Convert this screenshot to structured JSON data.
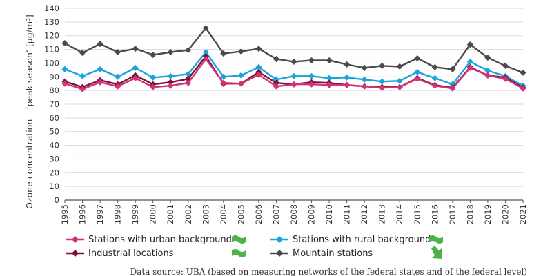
{
  "chart_data": {
    "type": "line",
    "ylabel": "Ozone concentration – ‘peak season‘ [µg/m³]",
    "xlabel": "",
    "ylim": [
      0,
      140
    ],
    "y_ticks": [
      0,
      10,
      20,
      30,
      40,
      50,
      60,
      70,
      80,
      90,
      100,
      110,
      120,
      130,
      140
    ],
    "grid": "horizontal",
    "legend_position": "bottom",
    "x": [
      "1995",
      "1996",
      "1997",
      "1998",
      "1999",
      "2000",
      "2001",
      "2002",
      "2003",
      "2004",
      "2005",
      "2006",
      "2007",
      "2008",
      "2009",
      "2010",
      "2011",
      "2012",
      "2013",
      "2014",
      "2015",
      "2016",
      "2017",
      "2018",
      "2019",
      "2020",
      "2021"
    ],
    "series": [
      {
        "name": "Mountain stations",
        "color": "#4a4a4a",
        "marker": "diamond",
        "values": [
          114.5,
          107.5,
          114,
          108,
          110.5,
          106,
          108,
          109.5,
          125.5,
          107,
          108.5,
          110.5,
          103,
          101,
          102,
          102,
          99,
          96.5,
          98,
          97.5,
          103.5,
          97,
          95.5,
          113.5,
          104,
          98,
          93
        ]
      },
      {
        "name": "Stations with rural background",
        "color": "#1ba3dc",
        "marker": "diamond",
        "values": [
          95.5,
          90.5,
          95.5,
          90,
          96.5,
          89.5,
          90.5,
          92,
          108,
          90,
          91,
          97,
          88,
          90.5,
          90.5,
          89,
          89.5,
          88,
          86.5,
          87,
          93.5,
          89,
          84.5,
          101,
          94.5,
          90.5,
          83.5
        ]
      },
      {
        "name": "Industrial locations",
        "color": "#7b1234",
        "marker": "diamond",
        "values": [
          86.5,
          82.5,
          87.5,
          84.5,
          91,
          84.5,
          86,
          88.5,
          105,
          85,
          85,
          93.5,
          85.5,
          84.5,
          86,
          85.5,
          84,
          83,
          82.5,
          82.5,
          89,
          84,
          82,
          97,
          91,
          89.5,
          82
        ]
      },
      {
        "name": "Stations with urban background",
        "color": "#d1327a",
        "marker": "diamond",
        "values": [
          85,
          81,
          86,
          83,
          89,
          82.5,
          83.5,
          85.5,
          103,
          85.5,
          85,
          91.5,
          83,
          84.5,
          84.5,
          84,
          84,
          83,
          82,
          82.5,
          88.5,
          83.5,
          81.5,
          96.5,
          91,
          88.5,
          81.5
        ]
      }
    ],
    "legend": [
      {
        "label": "Stations with urban background",
        "series": "Stations with urban background",
        "trend": "sideways"
      },
      {
        "label": "Stations with rural background",
        "series": "Stations with rural background",
        "trend": "sideways"
      },
      {
        "label": "Industrial locations",
        "series": "Industrial locations",
        "trend": "sideways"
      },
      {
        "label": "Mountain stations",
        "series": "Mountain stations",
        "trend": "down"
      }
    ],
    "trend_icon_color": "#4cb34a",
    "source": "Data source: UBA (based on measuring networks of the federal states and of the federal level)"
  }
}
